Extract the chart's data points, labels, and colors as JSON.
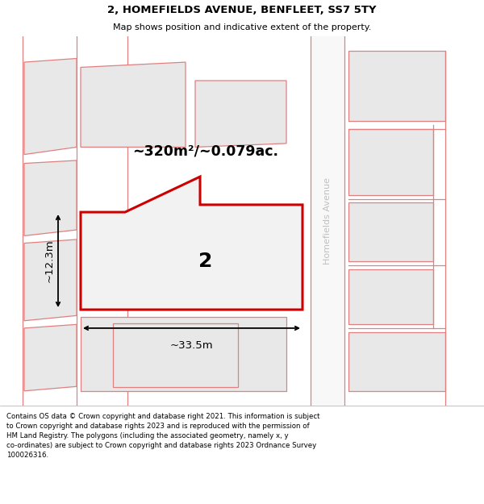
{
  "title": "2, HOMEFIELDS AVENUE, BENFLEET, SS7 5TY",
  "subtitle": "Map shows position and indicative extent of the property.",
  "area_label": "~320m²/~0.079ac.",
  "width_label": "~33.5m",
  "height_label": "~12.3m",
  "plot_number": "2",
  "map_bg": "#ffffff",
  "plot_outline_color": "#cc0000",
  "plot_fill_color": "#f5f5f5",
  "neighbor_outline_color": "#e08080",
  "neighbor_fill_color": "#e8e8e8",
  "road_label": "Homefields Avenue",
  "road_label_color": "#c0c0c0",
  "title_fontsize": 9.5,
  "subtitle_fontsize": 8.0,
  "area_fontsize": 12.5,
  "dim_fontsize": 9.5,
  "plot_label_fontsize": 18,
  "footer_fontsize": 6.2,
  "footer_lines": [
    "Contains OS data © Crown copyright and database right 2021. This information is subject",
    "to Crown copyright and database rights 2023 and is reproduced with the permission of",
    "HM Land Registry. The polygons (including the associated geometry, namely x, y",
    "co-ordinates) are subject to Crown copyright and database rights 2023 Ordnance Survey",
    "100026316."
  ]
}
